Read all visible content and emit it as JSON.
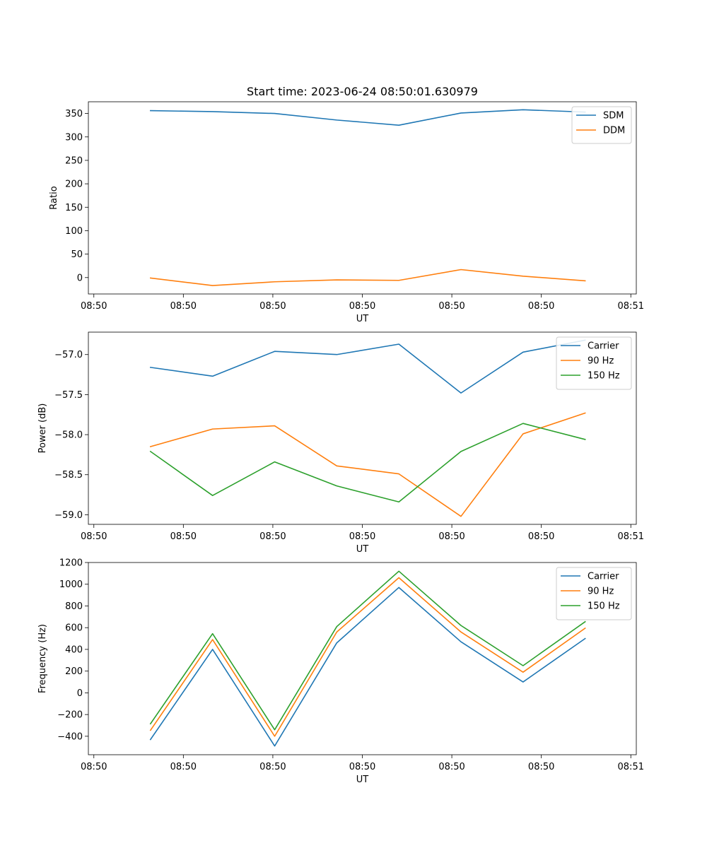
{
  "chart_data": [
    {
      "type": "line",
      "title": "Start time: 2023-06-24 08:50:01.630979",
      "xlabel": "UT",
      "ylabel": "Ratio",
      "x": [
        "08:50:03.4",
        "08:50:06.8",
        "08:50:10.2",
        "08:50:13.6",
        "08:50:17.0",
        "08:50:20.4",
        "08:50:23.8",
        "08:50:27.2"
      ],
      "xlim": [
        "08:50:00.0",
        "08:50:30.0"
      ],
      "xticks": [
        "08:50",
        "08:50",
        "08:50",
        "08:50",
        "08:50",
        "08:50",
        "08:51"
      ],
      "ylim": [
        -35,
        375
      ],
      "yticks": [
        "0",
        "50",
        "100",
        "150",
        "200",
        "250",
        "300",
        "350"
      ],
      "series": [
        {
          "name": "SDM",
          "color": "#1f77b4",
          "values": [
            356,
            354,
            350,
            336,
            325,
            351,
            358,
            353
          ]
        },
        {
          "name": "DDM",
          "color": "#ff7f0e",
          "values": [
            -1,
            -17,
            -9,
            -5,
            -6,
            17,
            3,
            -7
          ]
        }
      ],
      "legend": "top-right",
      "grid": false
    },
    {
      "type": "line",
      "title": "",
      "xlabel": "UT",
      "ylabel": "Power (dB)",
      "x": [
        "08:50:03.4",
        "08:50:06.8",
        "08:50:10.2",
        "08:50:13.6",
        "08:50:17.0",
        "08:50:20.4",
        "08:50:23.8",
        "08:50:27.2"
      ],
      "xlim": [
        "08:50:00.0",
        "08:50:30.0"
      ],
      "xticks": [
        "08:50",
        "08:50",
        "08:50",
        "08:50",
        "08:50",
        "08:50",
        "08:51"
      ],
      "ylim": [
        -59.12,
        -56.72
      ],
      "yticks": [
        "−59.0",
        "−58.5",
        "−58.0",
        "−57.5",
        "−57.0"
      ],
      "series": [
        {
          "name": "Carrier",
          "color": "#1f77b4",
          "values": [
            -57.16,
            -57.27,
            -56.96,
            -57.0,
            -56.87,
            -57.48,
            -56.97,
            -56.82
          ]
        },
        {
          "name": "90 Hz",
          "color": "#ff7f0e",
          "values": [
            -58.15,
            -57.93,
            -57.89,
            -58.39,
            -58.49,
            -59.02,
            -57.99,
            -57.73
          ]
        },
        {
          "name": "150 Hz",
          "color": "#2ca02c",
          "values": [
            -58.21,
            -58.76,
            -58.34,
            -58.64,
            -58.84,
            -58.21,
            -57.86,
            -58.06
          ]
        }
      ],
      "legend": "top-right",
      "grid": false
    },
    {
      "type": "line",
      "title": "",
      "xlabel": "UT",
      "ylabel": "Frequency (Hz)",
      "x": [
        "08:50:03.4",
        "08:50:06.8",
        "08:50:10.2",
        "08:50:13.6",
        "08:50:17.0",
        "08:50:20.4",
        "08:50:23.8",
        "08:50:27.2"
      ],
      "xlim": [
        "08:50:00.0",
        "08:50:30.0"
      ],
      "xticks": [
        "08:50",
        "08:50",
        "08:50",
        "08:50",
        "08:50",
        "08:50",
        "08:51"
      ],
      "ylim": [
        -570,
        1200
      ],
      "yticks": [
        "−400",
        "−200",
        "0",
        "200",
        "400",
        "600",
        "800",
        "1000",
        "1200"
      ],
      "series": [
        {
          "name": "Carrier",
          "color": "#1f77b4",
          "values": [
            -430,
            400,
            -490,
            460,
            970,
            470,
            100,
            500
          ]
        },
        {
          "name": "90 Hz",
          "color": "#ff7f0e",
          "values": [
            -345,
            490,
            -400,
            560,
            1060,
            560,
            190,
            595
          ]
        },
        {
          "name": "150 Hz",
          "color": "#2ca02c",
          "values": [
            -285,
            545,
            -340,
            610,
            1120,
            620,
            250,
            655
          ]
        }
      ],
      "legend": "top-right",
      "grid": false
    }
  ]
}
